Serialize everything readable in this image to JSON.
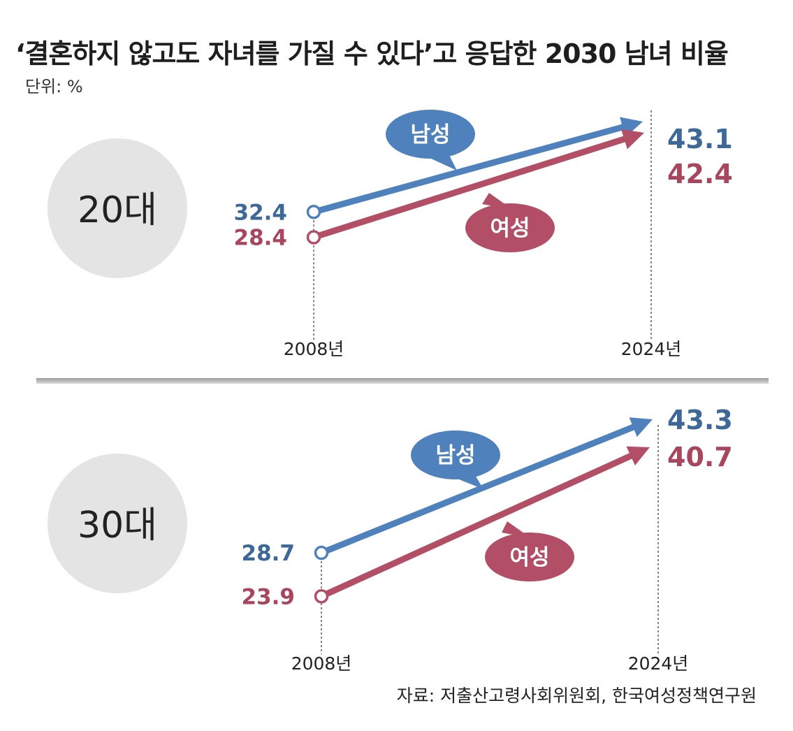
{
  "title": "‘결혼하지 않고도 자녀를 가질 수 있다’고 응답한 2030 남녀 비율",
  "unit_label": "단위: %",
  "source": "자료: 저출산고령사회위원회, 한국여성정책연구원",
  "colors": {
    "male": "#4f81bd",
    "male_text": "#3e6898",
    "female": "#b24f66",
    "female_text": "#a8465e",
    "circle_fill": "#e4e4e4"
  },
  "chart_data": [
    {
      "type": "line",
      "group_label": "20대",
      "x": [
        "2008년",
        "2024년"
      ],
      "series": [
        {
          "name": "남성",
          "values": [
            32.4,
            43.1
          ]
        },
        {
          "name": "여성",
          "values": [
            28.4,
            42.4
          ]
        }
      ]
    },
    {
      "type": "line",
      "group_label": "30대",
      "x": [
        "2008년",
        "2024년"
      ],
      "series": [
        {
          "name": "남성",
          "values": [
            28.7,
            43.3
          ]
        },
        {
          "name": "여성",
          "values": [
            23.9,
            40.7
          ]
        }
      ]
    }
  ]
}
